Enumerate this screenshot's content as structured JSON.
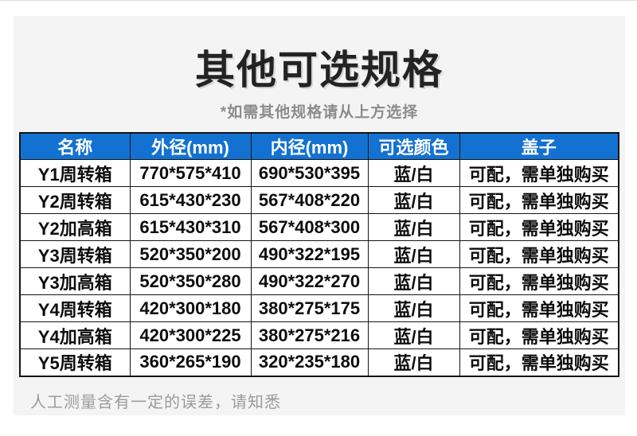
{
  "page": {
    "title": "其他可选规格",
    "subtitle": "*如需其他规格请从上方选择",
    "footer_note": "人工测量含有一定的误差，请知悉"
  },
  "table": {
    "headers": [
      "名称",
      "外径(mm)",
      "内径(mm)",
      "可选颜色",
      "盖子"
    ],
    "rows": [
      [
        "Y1周转箱",
        "770*575*410",
        "690*530*395",
        "蓝/白",
        "可配，需单独购买"
      ],
      [
        "Y2周转箱",
        "615*430*230",
        "567*408*220",
        "蓝/白",
        "可配，需单独购买"
      ],
      [
        "Y2加高箱",
        "615*430*310",
        "567*408*300",
        "蓝/白",
        "可配，需单独购买"
      ],
      [
        "Y3周转箱",
        "520*350*200",
        "490*322*195",
        "蓝/白",
        "可配，需单独购买"
      ],
      [
        "Y3加高箱",
        "520*350*280",
        "490*322*270",
        "蓝/白",
        "可配，需单独购买"
      ],
      [
        "Y4周转箱",
        "420*300*180",
        "380*275*175",
        "蓝/白",
        "可配，需单独购买"
      ],
      [
        "Y4加高箱",
        "420*300*225",
        "380*275*216",
        "蓝/白",
        "可配，需单独购买"
      ],
      [
        "Y5周转箱",
        "360*265*190",
        "320*235*180",
        "蓝/白",
        "可配，需单独购买"
      ]
    ]
  },
  "colors": {
    "header_bg": "#1371d1",
    "header_text": "#ffffff",
    "panel_bg": "#f4f4f4",
    "border": "#151515",
    "title_text": "#232323",
    "subtitle_text": "#8c8c8c",
    "footer_text": "#9b9b9b"
  }
}
